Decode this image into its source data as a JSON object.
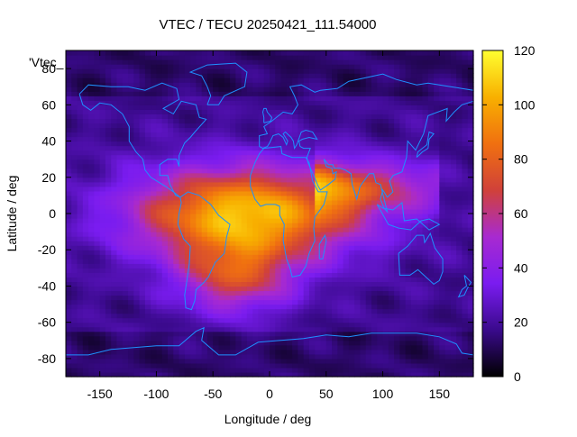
{
  "chart_data": {
    "type": "heatmap",
    "title": "VTEC / TECU 20250421_111.54000",
    "xlabel": "Longitude / deg",
    "ylabel": "Latitude / deg",
    "xlim": [
      -180,
      180
    ],
    "ylim": [
      -90,
      90
    ],
    "x_ticks": [
      -150,
      -100,
      -50,
      0,
      50,
      100,
      150
    ],
    "y_ticks": [
      -80,
      -60,
      -40,
      -20,
      0,
      20,
      40,
      60,
      80
    ],
    "colorbar": {
      "range": [
        0,
        120
      ],
      "ticks": [
        0,
        20,
        40,
        60,
        80,
        100,
        120
      ],
      "stops": [
        "#000000",
        "#3a0a8c",
        "#7a1cf0",
        "#a82ad0",
        "#d0413a",
        "#f07010",
        "#f8b000",
        "#ffff30"
      ]
    },
    "series_label": "'Vtec_",
    "background_level": 18,
    "enhancement": {
      "peak_level": 108,
      "center_lon": -20,
      "center_lat": 0,
      "lon_sigma": 70,
      "lat_sigma": 18,
      "southern_extension_level": 65,
      "southern_extension_lat": -35,
      "eastern_arm_level": 80,
      "eastern_arm_lon": [
        40,
        150
      ],
      "eastern_arm_lat": 15
    },
    "coastline_color": "#1e90ff"
  }
}
